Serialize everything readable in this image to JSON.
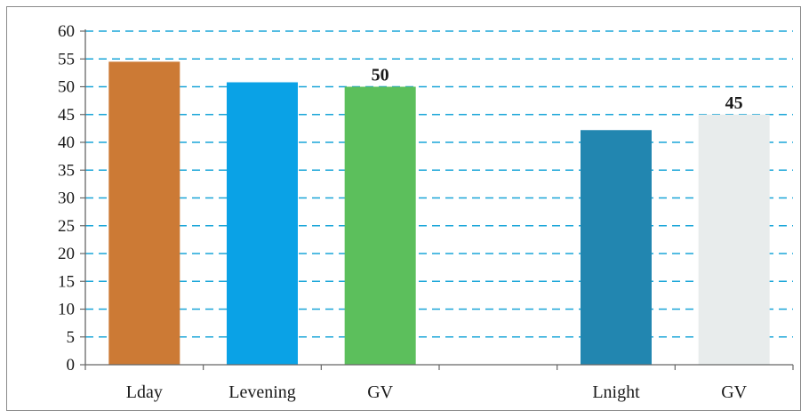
{
  "chart_data": {
    "type": "bar",
    "title": "",
    "xlabel": "",
    "ylabel": "",
    "ylim": [
      0,
      60
    ],
    "yticks": [
      0,
      5,
      10,
      15,
      20,
      25,
      30,
      35,
      40,
      45,
      50,
      55,
      60
    ],
    "grid": "dashed horizontal",
    "categories": [
      "Lday",
      "Levening",
      "GV",
      "",
      "Lnight",
      "GV"
    ],
    "values": [
      54.5,
      50.8,
      50,
      null,
      42.2,
      45
    ],
    "data_labels": [
      "",
      "",
      "50",
      "",
      "",
      "45"
    ],
    "bar_colors": [
      "#cc7a35",
      "#0aa2e6",
      "#5cbf5c",
      "",
      "#2286b0",
      "#e8ecec"
    ],
    "grid_color": "#1aa6d8",
    "axis_color": "#666666"
  }
}
